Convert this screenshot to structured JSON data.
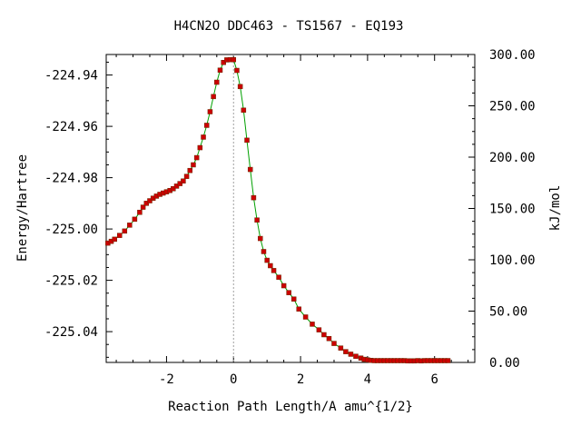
{
  "chart_data": {
    "type": "line",
    "title": "H4CN2O   DDC463 - TS1567 - EQ193",
    "xlabel": "Reaction Path Length/A amu^{1/2}",
    "ylabel": "Energy/Hartree",
    "y2label": "kJ/mol",
    "xlim": [
      -3.8,
      7.2
    ],
    "ylim": [
      -225.052,
      -224.932
    ],
    "y2lim": [
      0,
      300
    ],
    "x_ticks": [
      -2,
      0,
      2,
      4,
      6
    ],
    "x_tick_labels": [
      "-2",
      "0",
      "2",
      "4",
      "6"
    ],
    "y_ticks": [
      -224.94,
      -224.96,
      -224.98,
      -225.0,
      -225.02,
      -225.04
    ],
    "y_tick_labels": [
      "-224.94",
      "-224.96",
      "-224.98",
      "-225.00",
      "-225.02",
      "-225.04"
    ],
    "y2_ticks": [
      300,
      250,
      200,
      150,
      100,
      50,
      0
    ],
    "y2_tick_labels": [
      "300.00",
      "250.00",
      "200.00",
      "150.00",
      "100.00",
      "50.00",
      "0.00"
    ],
    "grid": false,
    "ts_marker_x": 0,
    "line_color": "#00a000",
    "marker_color": "#cc0000",
    "series": [
      {
        "x": [
          -3.75,
          -3.65,
          -3.55,
          -3.4,
          -3.25,
          -3.1,
          -2.95,
          -2.8,
          -2.7,
          -2.6,
          -2.5,
          -2.4,
          -2.3,
          -2.2,
          -2.1,
          -2.0,
          -1.9,
          -1.8,
          -1.7,
          -1.6,
          -1.5,
          -1.4,
          -1.3,
          -1.2,
          -1.1,
          -1.0,
          -0.9,
          -0.8,
          -0.7,
          -0.6,
          -0.5,
          -0.4,
          -0.3,
          -0.2,
          -0.1,
          0.0,
          0.1,
          0.2,
          0.3,
          0.4,
          0.5,
          0.6,
          0.7,
          0.8,
          0.9,
          1.0,
          1.1,
          1.2,
          1.35,
          1.5,
          1.65,
          1.8,
          1.95,
          2.15,
          2.35,
          2.55,
          2.7,
          2.85,
          3.0,
          3.2,
          3.35,
          3.5,
          3.65,
          3.8,
          3.9,
          4.0,
          4.1,
          4.2,
          4.3,
          4.4,
          4.5,
          4.6,
          4.7,
          4.8,
          4.9,
          5.0,
          5.1,
          5.2,
          5.3,
          5.4,
          5.5,
          5.6,
          5.7,
          5.8,
          5.9,
          6.0,
          6.1,
          6.2,
          6.3,
          6.4
        ],
        "y": [
          -225.0055,
          -225.0048,
          -225.004,
          -225.0025,
          -225.0008,
          -224.9985,
          -224.9962,
          -224.9935,
          -224.9915,
          -224.99,
          -224.989,
          -224.988,
          -224.9872,
          -224.9865,
          -224.986,
          -224.9855,
          -224.985,
          -224.9843,
          -224.9833,
          -224.9823,
          -224.9813,
          -224.9795,
          -224.9772,
          -224.975,
          -224.9722,
          -224.9683,
          -224.9642,
          -224.9596,
          -224.9543,
          -224.9484,
          -224.9428,
          -224.9381,
          -224.9351,
          -224.9341,
          -224.934,
          -224.934,
          -224.9382,
          -224.9445,
          -224.9537,
          -224.9654,
          -224.9768,
          -224.9878,
          -224.9965,
          -225.0037,
          -225.0088,
          -225.0122,
          -225.0143,
          -225.0162,
          -225.0188,
          -225.0221,
          -225.0248,
          -225.0273,
          -225.0312,
          -225.0343,
          -225.0371,
          -225.0393,
          -225.0412,
          -225.0427,
          -225.0446,
          -225.0464,
          -225.0478,
          -225.0488,
          -225.0496,
          -225.0503,
          -225.0508,
          -225.051,
          -225.0512,
          -225.0513,
          -225.0513,
          -225.0513,
          -225.0513,
          -225.0513,
          -225.0513,
          -225.0513,
          -225.0513,
          -225.0513,
          -225.0513,
          -225.0514,
          -225.0514,
          -225.0514,
          -225.0513,
          -225.0514,
          -225.0513,
          -225.0513,
          -225.0513,
          -225.0513,
          -225.0513,
          -225.0513,
          -225.0513,
          -225.0513
        ]
      }
    ]
  }
}
